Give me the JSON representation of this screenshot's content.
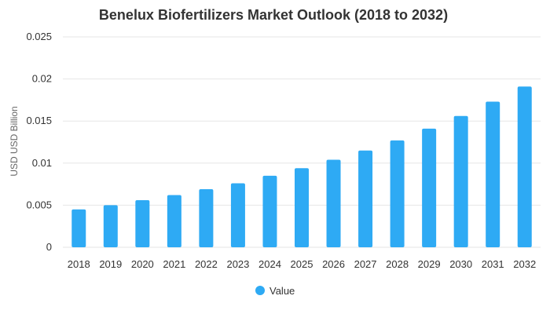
{
  "chart_data": {
    "type": "bar",
    "title": "Benelux Biofertilizers Market Outlook (2018 to 2032)",
    "xlabel": "",
    "ylabel": "USD USD Billion",
    "categories": [
      "2018",
      "2019",
      "2020",
      "2021",
      "2022",
      "2023",
      "2024",
      "2025",
      "2026",
      "2027",
      "2028",
      "2029",
      "2030",
      "2031",
      "2032"
    ],
    "series": [
      {
        "name": "Value",
        "values": [
          0.0045,
          0.005,
          0.0056,
          0.0062,
          0.0069,
          0.0076,
          0.0085,
          0.0094,
          0.0104,
          0.0115,
          0.0127,
          0.0141,
          0.0156,
          0.0173,
          0.0191
        ]
      }
    ],
    "ylim": [
      0,
      0.025
    ],
    "yticks": [
      "0",
      "0.005",
      "0.01",
      "0.015",
      "0.02",
      "0.025"
    ],
    "grid": true,
    "legend_position": "bottom-center",
    "bar_color": "#2eaaf4"
  }
}
